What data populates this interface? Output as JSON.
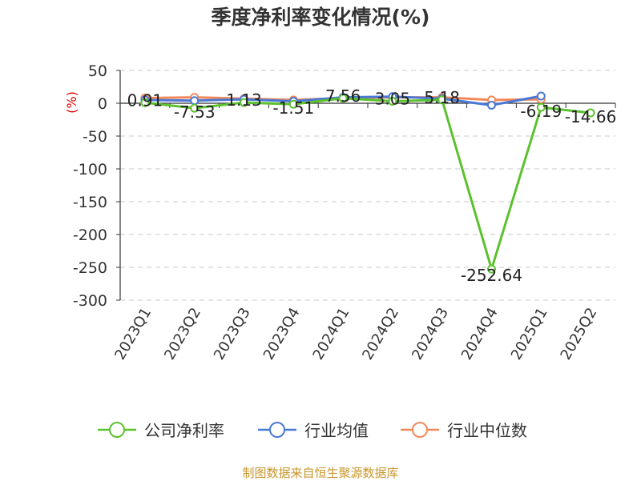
{
  "chart_data": {
    "type": "line",
    "title": "季度净利率变化情况(%)",
    "ylabel": "(%)",
    "ylim": [
      -300,
      50
    ],
    "yticks": [
      "50",
      "0",
      "-50",
      "-100",
      "-150",
      "-200",
      "-250",
      "-300"
    ],
    "yticks_values": [
      50,
      0,
      -50,
      -100,
      -150,
      -200,
      -250,
      -300
    ],
    "categories": [
      "2023Q1",
      "2023Q2",
      "2023Q3",
      "2023Q4",
      "2024Q1",
      "2024Q2",
      "2024Q3",
      "2024Q4",
      "2025Q1",
      "2025Q2"
    ],
    "grid": true,
    "legend_position": "bottom",
    "series": [
      {
        "name": "公司净利率",
        "color": "#5cc12e",
        "values": [
          0.91,
          -7.53,
          1.13,
          -1.51,
          7.56,
          3.05,
          5.18,
          -252.64,
          -6.19,
          -14.66
        ],
        "labels": [
          "0.91",
          "-7.53",
          "1.13",
          "-1.51",
          "7.56",
          "3.05",
          "5.18",
          "-252.64",
          "-6.19",
          "-14.66"
        ]
      },
      {
        "name": "行业均值",
        "color": "#4a78d6",
        "values": [
          5,
          4,
          6,
          3,
          9,
          10,
          7,
          -3,
          11,
          null
        ]
      },
      {
        "name": "行业中位数",
        "color": "#f2895a",
        "values": [
          8,
          9,
          7,
          5,
          8,
          9,
          9,
          5,
          6,
          null
        ]
      }
    ]
  },
  "source": "制图数据来自恒生聚源数据库"
}
